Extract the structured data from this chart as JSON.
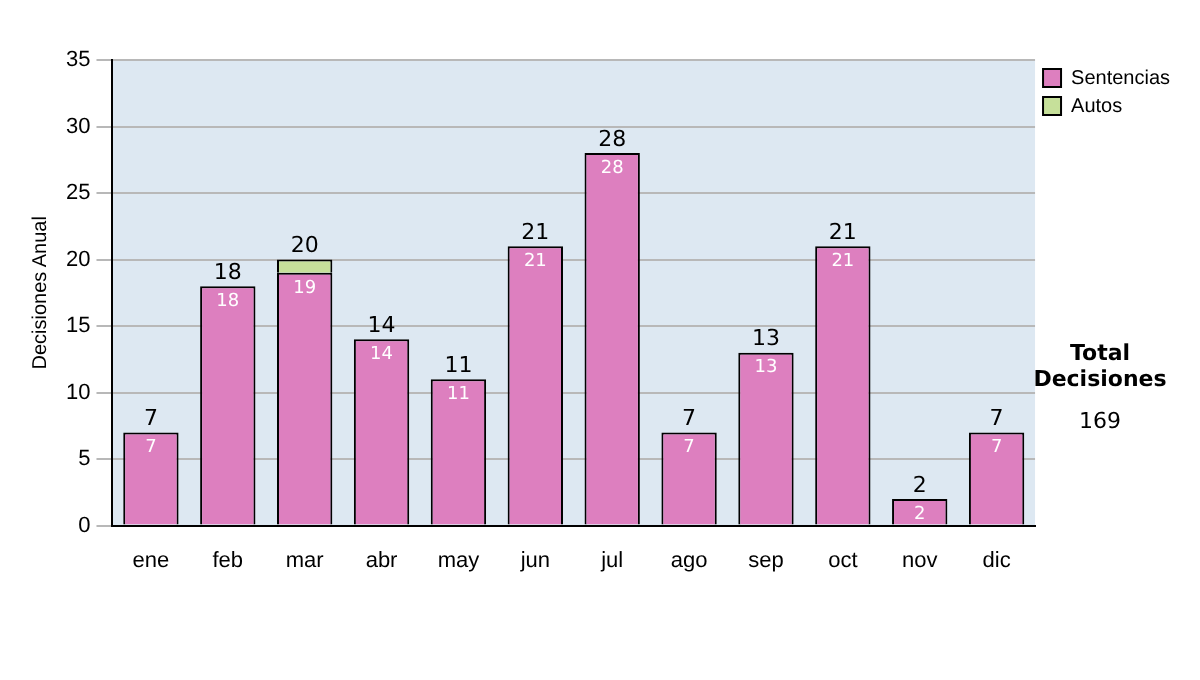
{
  "chart_data": {
    "type": "bar",
    "stacked": true,
    "ylabel": "Decisiones Anual",
    "categories": [
      "ene",
      "feb",
      "mar",
      "abr",
      "may",
      "jun",
      "jul",
      "ago",
      "sep",
      "oct",
      "nov",
      "dic"
    ],
    "series": [
      {
        "name": "Sentencias",
        "color": "#dd7fbf",
        "values": [
          7,
          18,
          19,
          14,
          11,
          21,
          28,
          7,
          13,
          21,
          2,
          7
        ],
        "value_labels": [
          "7",
          "18",
          "19",
          "14",
          "11",
          "21",
          "28",
          "7",
          "13",
          "21",
          "2",
          "7"
        ]
      },
      {
        "name": "Autos",
        "color": "#c6e09a",
        "values": [
          null,
          null,
          1,
          null,
          null,
          null,
          null,
          null,
          null,
          null,
          null,
          null
        ]
      }
    ],
    "totals": [
      "7",
      "18",
      "20",
      "14",
      "11",
      "21",
      "28",
      "7",
      "13",
      "21",
      "2",
      "7"
    ],
    "ylim": [
      0,
      35
    ],
    "yticks": [
      0,
      5,
      10,
      15,
      20,
      25,
      30,
      35
    ],
    "grid": "y",
    "legend": "right",
    "annotations": [
      "Total Decisiones",
      "169"
    ]
  }
}
